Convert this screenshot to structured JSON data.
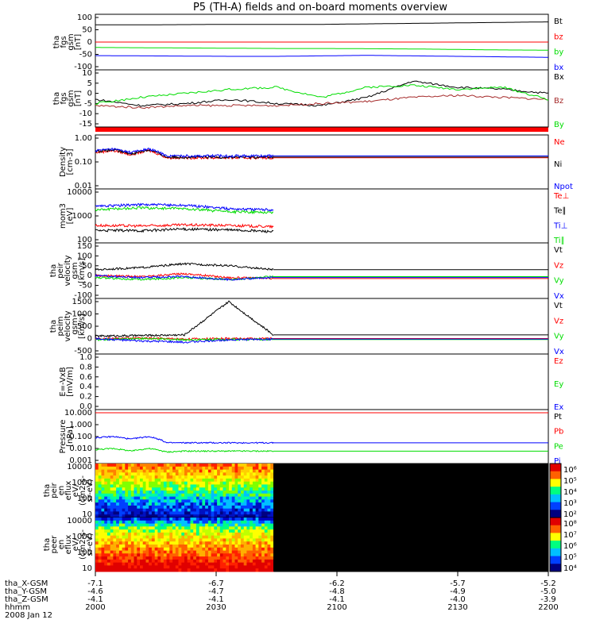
{
  "title": "P5 (TH-A) fields and on-board moments overview",
  "chart_data": [
    {
      "id": "fgs_mag",
      "type": "line",
      "ylabel": [
        "tha",
        "fgs",
        "gsm",
        "[nT]"
      ],
      "ylim": [
        -100,
        100
      ],
      "yticks": [
        "100",
        "50",
        "0",
        "-50",
        "-100"
      ],
      "series": [
        {
          "name": "Bt",
          "color": "#000000",
          "values": [
            70,
            70,
            71,
            72,
            72,
            72,
            74,
            76,
            78,
            80,
            82
          ]
        },
        {
          "name": "bz",
          "color": "#ff0000",
          "values": [
            0,
            0,
            0,
            0,
            0,
            0,
            0,
            0,
            0,
            0,
            0
          ]
        },
        {
          "name": "by",
          "color": "#00dd00",
          "values": [
            -22,
            -23,
            -24,
            -25,
            -26,
            -26,
            -27,
            -28,
            -30,
            -32,
            -33
          ]
        },
        {
          "name": "bx",
          "color": "#0000ff",
          "values": [
            -55,
            -56,
            -57,
            -58,
            -58,
            -56,
            -54,
            -56,
            -58,
            -60,
            -62
          ]
        }
      ]
    },
    {
      "id": "fgs_zoom",
      "type": "line",
      "ylabel": [
        "tha",
        "fgs",
        "gsm",
        "[nT]"
      ],
      "ylim": [
        -15,
        10
      ],
      "yticks": [
        "10",
        "5",
        "0",
        "-5",
        "-10",
        "-15"
      ],
      "series": [
        {
          "name": "Bx",
          "color": "#000000",
          "values": [
            -3,
            -6,
            -5,
            -3,
            -5,
            -6,
            -2,
            6,
            3,
            2,
            0
          ]
        },
        {
          "name": "Bz",
          "color": "#a52a2a",
          "values": [
            -6,
            -7,
            -6,
            -6,
            -6,
            -5,
            -4,
            -2,
            -1,
            -2,
            -3
          ]
        },
        {
          "name": "By",
          "color": "#00dd00",
          "values": [
            -5,
            -2,
            0,
            2,
            3,
            -2,
            3,
            4,
            2,
            3,
            -3
          ]
        }
      ]
    },
    {
      "id": "density",
      "type": "line",
      "ylabel": [
        "Density",
        "[cm-3]"
      ],
      "log": true,
      "ylim": [
        0.01,
        1.0
      ],
      "yticks": [
        "1.00",
        "0.10",
        "0.01"
      ],
      "series": [
        {
          "name": "Ne",
          "color": "#ff0000",
          "values": [
            0.25,
            0.3,
            0.2,
            0.3,
            0.15,
            0.15,
            0.15,
            0.15,
            0.15,
            0.15,
            0.15
          ]
        },
        {
          "name": "Ni",
          "color": "#000000",
          "values": [
            0.28,
            0.32,
            0.22,
            0.32,
            0.16,
            0.16,
            0.16,
            0.16,
            0.16,
            0.16,
            0.16
          ]
        },
        {
          "name": "Npot",
          "color": "#0000ff",
          "values": [
            0.3,
            0.35,
            0.25,
            0.35,
            0.18,
            0.18,
            0.18,
            0.18,
            0.18,
            0.18,
            0.18
          ]
        }
      ]
    },
    {
      "id": "temp",
      "type": "line",
      "ylabel": [
        "mom3",
        "[eV]"
      ],
      "log": true,
      "ylim": [
        100,
        10000
      ],
      "yticks": [
        "10000",
        "1000",
        "100"
      ],
      "series": [
        {
          "name": "Te⊥",
          "color": "#ff0000",
          "values": [
            400,
            380,
            420,
            400,
            350
          ]
        },
        {
          "name": "Te∥",
          "color": "#000000",
          "values": [
            250,
            240,
            280,
            260,
            220
          ]
        },
        {
          "name": "Ti⊥",
          "color": "#0000ff",
          "values": [
            2500,
            3000,
            2800,
            2000,
            1800
          ]
        },
        {
          "name": "Ti∥",
          "color": "#00dd00",
          "values": [
            1800,
            2200,
            2000,
            1500,
            1400
          ]
        }
      ]
    },
    {
      "id": "peir_vel",
      "type": "line",
      "ylabel": [
        "tha",
        "peir",
        "velocity",
        "gsm",
        "[km/s]"
      ],
      "ylim": [
        -100,
        150
      ],
      "yticks": [
        "150",
        "100",
        "50",
        "0",
        "-50",
        "-100"
      ],
      "series": [
        {
          "name": "Vt",
          "color": "#000000",
          "values": [
            30,
            40,
            60,
            50,
            30
          ]
        },
        {
          "name": "Vz",
          "color": "#ff0000",
          "values": [
            0,
            -5,
            10,
            -10,
            -15
          ]
        },
        {
          "name": "Vy",
          "color": "#00dd00",
          "values": [
            -10,
            -20,
            -10,
            -20,
            -5
          ]
        },
        {
          "name": "Vx",
          "color": "#0000ff",
          "values": [
            0,
            -10,
            -5,
            -20,
            -10
          ]
        }
      ]
    },
    {
      "id": "peim_vel",
      "type": "line",
      "ylabel": [
        "tha",
        "peim",
        "velocity",
        "gsm",
        "[km/s]"
      ],
      "ylim": [
        -500,
        1500
      ],
      "yticks": [
        "1500",
        "1000",
        "500",
        "0",
        "-500"
      ],
      "series": [
        {
          "name": "Vt",
          "color": "#000000",
          "values": [
            100,
            120,
            150,
            1500,
            150
          ]
        },
        {
          "name": "Vz",
          "color": "#ff0000",
          "values": [
            0,
            20,
            -20,
            0,
            0
          ]
        },
        {
          "name": "Vy",
          "color": "#00dd00",
          "values": [
            -50,
            0,
            -50,
            -30,
            -40
          ]
        },
        {
          "name": "Vx",
          "color": "#0000ff",
          "values": [
            0,
            -100,
            -150,
            -50,
            -20
          ]
        }
      ]
    },
    {
      "id": "efield",
      "type": "line",
      "ylabel": [
        "E=-VxB",
        "[mV/m]"
      ],
      "ylim": [
        0.0,
        1.0
      ],
      "yticks": [
        "1.0",
        "0.8",
        "0.6",
        "0.4",
        "0.2",
        "0.0"
      ],
      "series": [
        {
          "name": "Ez",
          "color": "#ff0000",
          "values": []
        },
        {
          "name": "Ey",
          "color": "#00dd00",
          "values": []
        },
        {
          "name": "Ex",
          "color": "#0000ff",
          "values": []
        }
      ]
    },
    {
      "id": "pressure",
      "type": "line",
      "ylabel": [
        "Pressure",
        "[nPa]"
      ],
      "log": true,
      "ylim": [
        0.001,
        10
      ],
      "yticks": [
        "10.000",
        "1.000",
        "0.100",
        "0.010",
        "0.001"
      ],
      "series": [
        {
          "name": "Pt",
          "color": "#000000",
          "values": [
            10,
            10,
            10,
            10,
            10,
            10,
            10,
            10,
            10,
            10,
            10
          ]
        },
        {
          "name": "Pb",
          "color": "#ff0000",
          "values": [
            10,
            10,
            10,
            10,
            10,
            10,
            10,
            10,
            10,
            10,
            10
          ]
        },
        {
          "name": "Pe",
          "color": "#00dd00",
          "values": [
            0.008,
            0.01,
            0.006,
            0.01,
            0.005,
            0.006,
            0.006,
            0.006,
            0.006,
            0.006,
            0.006
          ]
        },
        {
          "name": "Pi",
          "color": "#0000ff",
          "values": [
            0.08,
            0.1,
            0.06,
            0.1,
            0.03,
            0.03,
            0.03,
            0.03,
            0.03,
            0.03,
            0.03
          ]
        }
      ]
    },
    {
      "id": "peir_spec",
      "type": "heatmap",
      "ylabel": [
        "tha",
        "peir",
        "en",
        "eflux",
        "eV/",
        "(cm2-s-",
        "sr-eV)"
      ],
      "yticks": [
        "10000",
        "1000",
        "100",
        "10"
      ],
      "colorbar": [
        "10⁶",
        "10⁵",
        "10⁴",
        "10³",
        "10²"
      ]
    },
    {
      "id": "peer_spec",
      "type": "heatmap",
      "ylabel": [
        "tha",
        "peer",
        "en",
        "eflux",
        "eV/",
        "(cm2-s-",
        "sr-eV)"
      ],
      "yticks": [
        "10000",
        "1000",
        "100",
        "10"
      ],
      "colorbar": [
        "10⁸",
        "10⁷",
        "10⁶",
        "10⁵",
        "10⁴"
      ]
    }
  ],
  "x_axis": {
    "rows": [
      {
        "label": "tha_X-GSM",
        "values": [
          "-7.1",
          "-6.7",
          "-6.2",
          "-5.7",
          "-5.2"
        ]
      },
      {
        "label": "tha_Y-GSM",
        "values": [
          "-4.6",
          "-4.7",
          "-4.8",
          "-4.9",
          "-5.0"
        ]
      },
      {
        "label": "tha_Z-GSM",
        "values": [
          "-4.1",
          "-4.1",
          "-4.1",
          "-4.0",
          "-3.9"
        ]
      },
      {
        "label": "hhmm",
        "values": [
          "2000",
          "2030",
          "2100",
          "2130",
          "2200"
        ]
      }
    ],
    "date": "2008 Jan 12"
  }
}
